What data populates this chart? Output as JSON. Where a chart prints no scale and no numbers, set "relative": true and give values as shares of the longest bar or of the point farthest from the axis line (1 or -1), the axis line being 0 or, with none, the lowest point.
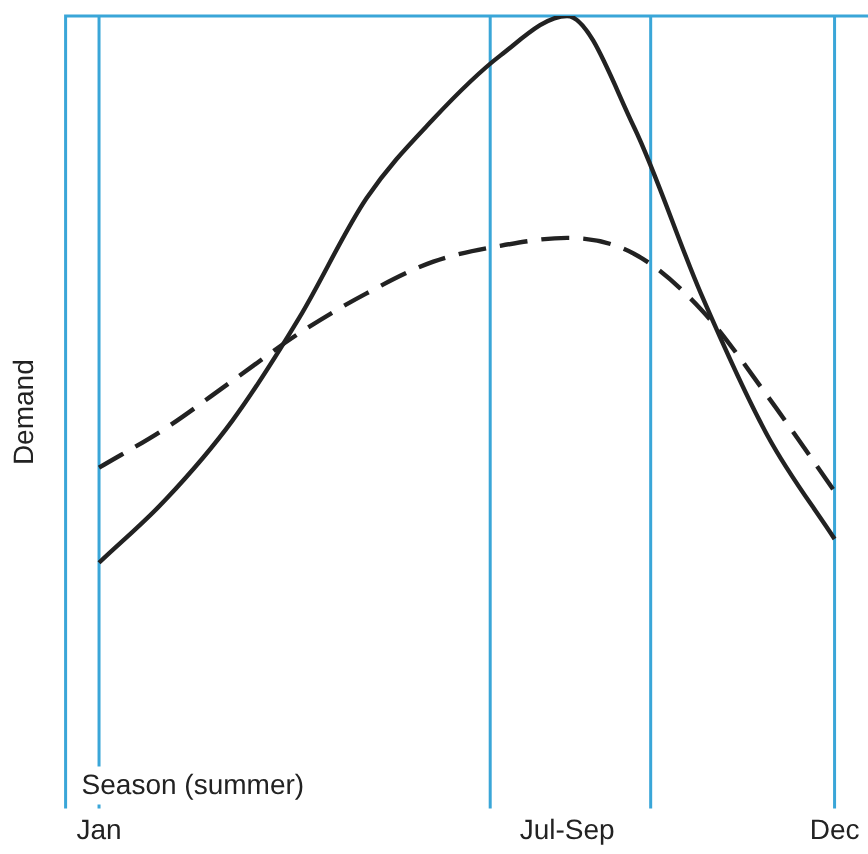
{
  "chart_data": {
    "type": "line",
    "relative": true,
    "ylabel": "Demand",
    "categories": [
      "Jan",
      null,
      null,
      null,
      null,
      null,
      null,
      "Jul-Sep",
      null,
      null,
      null,
      "Dec"
    ],
    "series": [
      {
        "color": "#222222",
        "line_style": "solid",
        "values": [
          0.31,
          0.39,
          0.49,
          0.62,
          0.77,
          0.87,
          0.95,
          1,
          0.86,
          0.65,
          0.47,
          0.34
        ]
      },
      {
        "color": "#222222",
        "line_style": "dashed",
        "values": [
          0.43,
          0.48,
          0.54,
          0.6,
          0.65,
          0.69,
          0.71,
          0.72,
          0.7,
          0.63,
          0.52,
          0.4
        ]
      }
    ],
    "ref_lines": [
      {
        "axis": "x",
        "value": "Jan",
        "color": "#3aa6d8"
      },
      {
        "axis": "x",
        "value": "Dec",
        "color": "#3aa6d8"
      }
    ],
    "annotations": [
      "Season (summer)"
    ],
    "legend": false,
    "grid": false
  }
}
